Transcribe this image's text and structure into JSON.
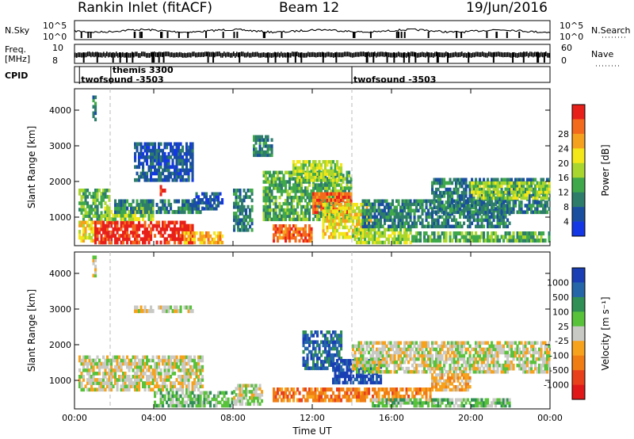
{
  "header": {
    "title": "Rankin Inlet (fitACF)",
    "beam": "Beam 12",
    "date": "19/Jun/2016"
  },
  "top_panels": {
    "sky_label": "N.Sky",
    "sky_ticks": [
      "10^5",
      "10^0"
    ],
    "search_label": "N.Search",
    "freq_label_1": "Freq.",
    "freq_label_2": "[MHz]",
    "freq_ticks": [
      "10",
      "8"
    ],
    "nave_ticks": [
      "60",
      "0"
    ],
    "nave_label": "Nave",
    "cpid_label": "CPID",
    "cpid_entries": [
      {
        "name": "twofsound -3503",
        "start": "00:15"
      },
      {
        "name": "themis 3300",
        "start": "01:50"
      },
      {
        "name": "twofsound -3503",
        "start": "14:00"
      }
    ]
  },
  "chart_data": [
    {
      "type": "heatmap",
      "name": "power",
      "ylabel": "Slant Range [km]",
      "y_ticks": [
        1000,
        2000,
        3000,
        4000
      ],
      "ylim": [
        200,
        4600
      ],
      "xlim": [
        0,
        24
      ],
      "x_ticks_hours": [
        0,
        4,
        8,
        12,
        16,
        20,
        24
      ],
      "colorbar": {
        "label": "Power [dB]",
        "ticks": [
          "4",
          "8",
          "12",
          "16",
          "20",
          "24",
          "28"
        ],
        "colors": [
          "#1437e6",
          "#1a4fa0",
          "#2e7d6b",
          "#3fa84a",
          "#a9d62e",
          "#f3e619",
          "#f5a11e",
          "#f46a1c",
          "#e8201a"
        ]
      },
      "dashed_markers_hours": [
        1.8,
        14.0
      ],
      "regions": [
        {
          "t0": 0.9,
          "t1": 1.1,
          "r0": 3700,
          "r1": 4500,
          "level": 2
        },
        {
          "t0": 0.2,
          "t1": 1.8,
          "r0": 900,
          "r1": 1800,
          "level": 3
        },
        {
          "t0": 0.2,
          "t1": 1.0,
          "r0": 300,
          "r1": 900,
          "level": 5
        },
        {
          "t0": 1.0,
          "t1": 6.0,
          "r0": 250,
          "r1": 900,
          "level": 8
        },
        {
          "t0": 1.5,
          "t1": 4.0,
          "r0": 900,
          "r1": 1300,
          "level": 4
        },
        {
          "t0": 2.0,
          "t1": 6.5,
          "r0": 1100,
          "r1": 1500,
          "level": 2
        },
        {
          "t0": 3.0,
          "t1": 6.0,
          "r0": 2000,
          "r1": 3100,
          "level": 1
        },
        {
          "t0": 4.3,
          "t1": 4.6,
          "r0": 1600,
          "r1": 1900,
          "level": 8
        },
        {
          "t0": 5.5,
          "t1": 7.5,
          "r0": 250,
          "r1": 600,
          "level": 6
        },
        {
          "t0": 6.0,
          "t1": 7.5,
          "r0": 1200,
          "r1": 1700,
          "level": 1
        },
        {
          "t0": 8.0,
          "t1": 9.0,
          "r0": 600,
          "r1": 1800,
          "level": 2
        },
        {
          "t0": 9.0,
          "t1": 10.0,
          "r0": 2700,
          "r1": 3300,
          "level": 2
        },
        {
          "t0": 9.5,
          "t1": 14.0,
          "r0": 900,
          "r1": 2300,
          "level": 3
        },
        {
          "t0": 10.0,
          "t1": 12.0,
          "r0": 300,
          "r1": 800,
          "level": 7
        },
        {
          "t0": 12.0,
          "t1": 14.0,
          "r0": 1100,
          "r1": 1700,
          "level": 7
        },
        {
          "t0": 11.0,
          "t1": 13.5,
          "r0": 2000,
          "r1": 2600,
          "level": 4
        },
        {
          "t0": 12.5,
          "t1": 15.0,
          "r0": 400,
          "r1": 1400,
          "level": 5
        },
        {
          "t0": 14.0,
          "t1": 17.0,
          "r0": 250,
          "r1": 700,
          "level": 4
        },
        {
          "t0": 14.5,
          "t1": 22.0,
          "r0": 700,
          "r1": 1500,
          "level": 2
        },
        {
          "t0": 17.0,
          "t1": 24.0,
          "r0": 300,
          "r1": 600,
          "level": 3
        },
        {
          "t0": 18.0,
          "t1": 24.0,
          "r0": 1100,
          "r1": 2100,
          "level": 2
        },
        {
          "t0": 20.0,
          "t1": 24.0,
          "r0": 1500,
          "r1": 2000,
          "level": 4
        }
      ]
    },
    {
      "type": "heatmap",
      "name": "velocity",
      "ylabel": "Slant Range [km]",
      "y_ticks": [
        1000,
        2000,
        3000,
        4000
      ],
      "ylim": [
        200,
        4600
      ],
      "xlim": [
        0,
        24
      ],
      "x_ticks_hours": [
        0,
        4,
        8,
        12,
        16,
        20,
        24
      ],
      "x_tick_labels": [
        "00:00",
        "04:00",
        "08:00",
        "12:00",
        "16:00",
        "20:00",
        "00:00"
      ],
      "xlabel": "Time UT",
      "colorbar": {
        "label": "Velocity [m s⁻¹]",
        "ticks": [
          "1000",
          "500",
          "100",
          "25",
          "-25",
          "-100",
          "-500",
          "-1000"
        ],
        "colors": [
          "#1a3fb4",
          "#2566a8",
          "#2f8f55",
          "#58c23a",
          "#c8c8c4",
          "#f7a21c",
          "#f07d14",
          "#e8401a",
          "#e01818"
        ]
      },
      "dashed_markers_hours": [
        1.8,
        14.0
      ],
      "regions": [
        {
          "t0": 0.2,
          "t1": 6.5,
          "r0": 700,
          "r1": 1700,
          "level": 4
        },
        {
          "t0": 0.9,
          "t1": 1.1,
          "r0": 3900,
          "r1": 4500,
          "level": 4
        },
        {
          "t0": 3.0,
          "t1": 6.0,
          "r0": 2900,
          "r1": 3100,
          "level": 4
        },
        {
          "t0": 4.0,
          "t1": 8.0,
          "r0": 250,
          "r1": 700,
          "level": 3
        },
        {
          "t0": 8.0,
          "t1": 9.5,
          "r0": 300,
          "r1": 900,
          "level": 4
        },
        {
          "t0": 10.0,
          "t1": 12.0,
          "r0": 400,
          "r1": 800,
          "level": 6
        },
        {
          "t0": 11.5,
          "t1": 13.5,
          "r0": 1300,
          "r1": 2400,
          "level": 1
        },
        {
          "t0": 13.0,
          "t1": 15.5,
          "r0": 900,
          "r1": 1600,
          "level": 0
        },
        {
          "t0": 12.0,
          "t1": 18.0,
          "r0": 400,
          "r1": 800,
          "level": 6
        },
        {
          "t0": 14.0,
          "t1": 24.0,
          "r0": 1200,
          "r1": 2100,
          "level": 4
        },
        {
          "t0": 15.0,
          "t1": 22.0,
          "r0": 250,
          "r1": 500,
          "level": 3
        },
        {
          "t0": 18.0,
          "t1": 20.0,
          "r0": 700,
          "r1": 1200,
          "level": 5
        }
      ]
    }
  ]
}
